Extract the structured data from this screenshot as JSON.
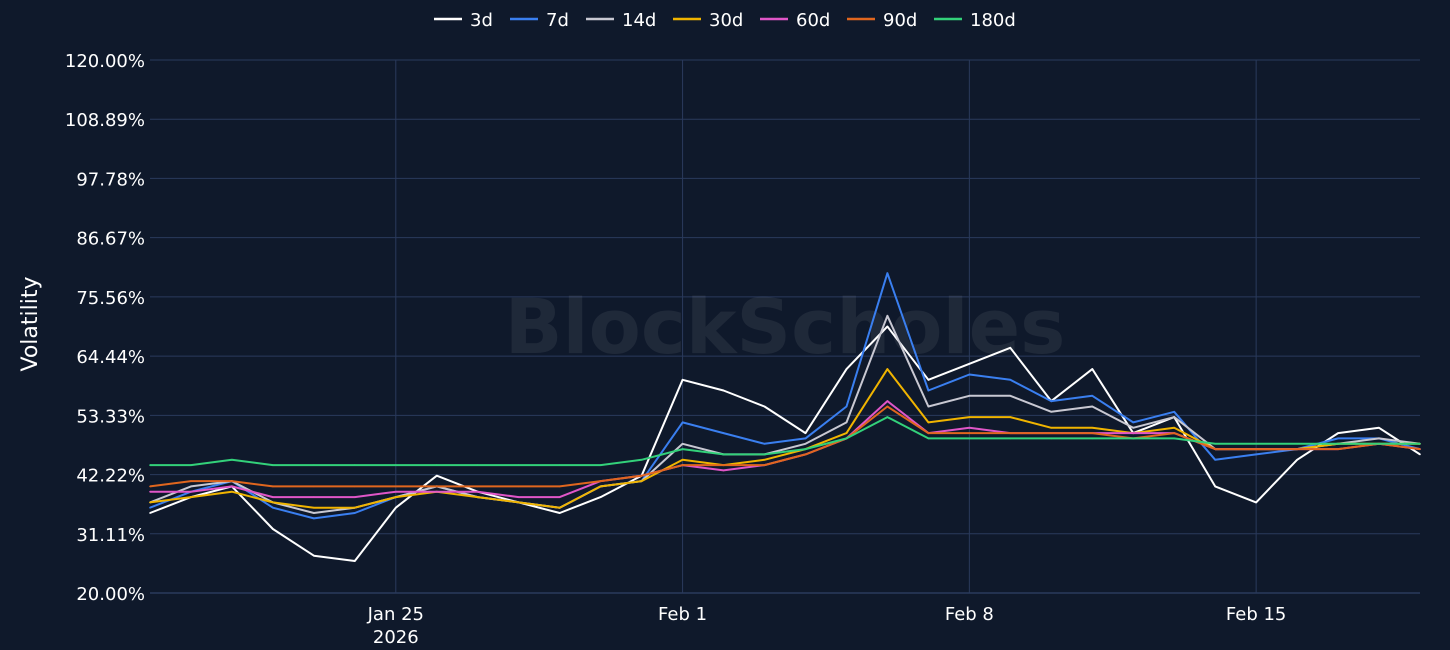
{
  "chart_data": {
    "type": "line",
    "watermark": "BlockScholes",
    "ylabel": "Volatility",
    "xlabel": "",
    "ylim": [
      20,
      120
    ],
    "y_ticks": [
      20,
      31.11,
      42.22,
      53.33,
      64.44,
      75.56,
      86.67,
      97.78,
      108.89,
      120
    ],
    "y_tick_labels": [
      "20.00%",
      "31.11%",
      "42.22%",
      "53.33%",
      "64.44%",
      "75.56%",
      "86.67%",
      "97.78%",
      "108.89%",
      "120.00%"
    ],
    "x_range": [
      "2026-01-19",
      "2026-02-19"
    ],
    "x_ticks": [
      {
        "date": "2026-01-25",
        "label": "Jan 25",
        "sublabel": "2026"
      },
      {
        "date": "2026-02-01",
        "label": "Feb 1",
        "sublabel": ""
      },
      {
        "date": "2026-02-08",
        "label": "Feb 8",
        "sublabel": ""
      },
      {
        "date": "2026-02-15",
        "label": "Feb 15",
        "sublabel": ""
      }
    ],
    "grid": true,
    "legend_position": "top-center",
    "x": [
      "2026-01-19",
      "2026-01-20",
      "2026-01-21",
      "2026-01-22",
      "2026-01-23",
      "2026-01-24",
      "2026-01-25",
      "2026-01-26",
      "2026-01-27",
      "2026-01-28",
      "2026-01-29",
      "2026-01-30",
      "2026-01-31",
      "2026-02-01",
      "2026-02-02",
      "2026-02-03",
      "2026-02-04",
      "2026-02-05",
      "2026-02-06",
      "2026-02-07",
      "2026-02-08",
      "2026-02-09",
      "2026-02-10",
      "2026-02-11",
      "2026-02-12",
      "2026-02-13",
      "2026-02-14",
      "2026-02-15",
      "2026-02-16",
      "2026-02-17",
      "2026-02-18",
      "2026-02-19"
    ],
    "series": [
      {
        "name": "3d",
        "color": "#ffffff",
        "values": [
          35,
          38,
          40,
          32,
          27,
          26,
          36,
          42,
          39,
          37,
          35,
          38,
          42,
          60,
          58,
          55,
          50,
          62,
          70,
          60,
          63,
          66,
          56,
          62,
          50,
          53,
          40,
          37,
          45,
          50,
          51,
          46
        ]
      },
      {
        "name": "7d",
        "color": "#3a7ff0",
        "values": [
          36,
          39,
          41,
          36,
          34,
          35,
          38,
          40,
          38,
          37,
          36,
          40,
          41,
          52,
          50,
          48,
          49,
          55,
          80,
          58,
          61,
          60,
          56,
          57,
          52,
          54,
          45,
          46,
          47,
          49,
          49,
          47
        ]
      },
      {
        "name": "14d",
        "color": "#c8c8d2",
        "values": [
          37,
          40,
          41,
          37,
          35,
          36,
          38,
          40,
          38,
          37,
          36,
          40,
          41,
          48,
          46,
          46,
          48,
          52,
          72,
          55,
          57,
          57,
          54,
          55,
          51,
          53,
          47,
          47,
          47,
          48,
          49,
          48
        ]
      },
      {
        "name": "30d",
        "color": "#f0b400",
        "values": [
          37,
          38,
          39,
          37,
          36,
          36,
          38,
          39,
          38,
          37,
          36,
          40,
          41,
          45,
          44,
          45,
          47,
          50,
          62,
          52,
          53,
          53,
          51,
          51,
          50,
          51,
          47,
          47,
          47,
          48,
          48,
          48
        ]
      },
      {
        "name": "60d",
        "color": "#e056c8",
        "values": [
          39,
          39,
          40,
          38,
          38,
          38,
          39,
          39,
          39,
          38,
          38,
          41,
          42,
          44,
          43,
          44,
          46,
          49,
          56,
          50,
          51,
          50,
          50,
          50,
          50,
          50,
          47,
          47,
          47,
          47,
          48,
          47
        ]
      },
      {
        "name": "90d",
        "color": "#e0661e",
        "values": [
          40,
          41,
          41,
          40,
          40,
          40,
          40,
          40,
          40,
          40,
          40,
          41,
          42,
          44,
          44,
          44,
          46,
          49,
          55,
          50,
          50,
          50,
          50,
          50,
          49,
          50,
          47,
          47,
          47,
          47,
          48,
          47
        ]
      },
      {
        "name": "180d",
        "color": "#33d17a",
        "values": [
          44,
          44,
          45,
          44,
          44,
          44,
          44,
          44,
          44,
          44,
          44,
          44,
          45,
          47,
          46,
          46,
          47,
          49,
          53,
          49,
          49,
          49,
          49,
          49,
          49,
          49,
          48,
          48,
          48,
          48,
          48,
          48
        ]
      }
    ]
  }
}
